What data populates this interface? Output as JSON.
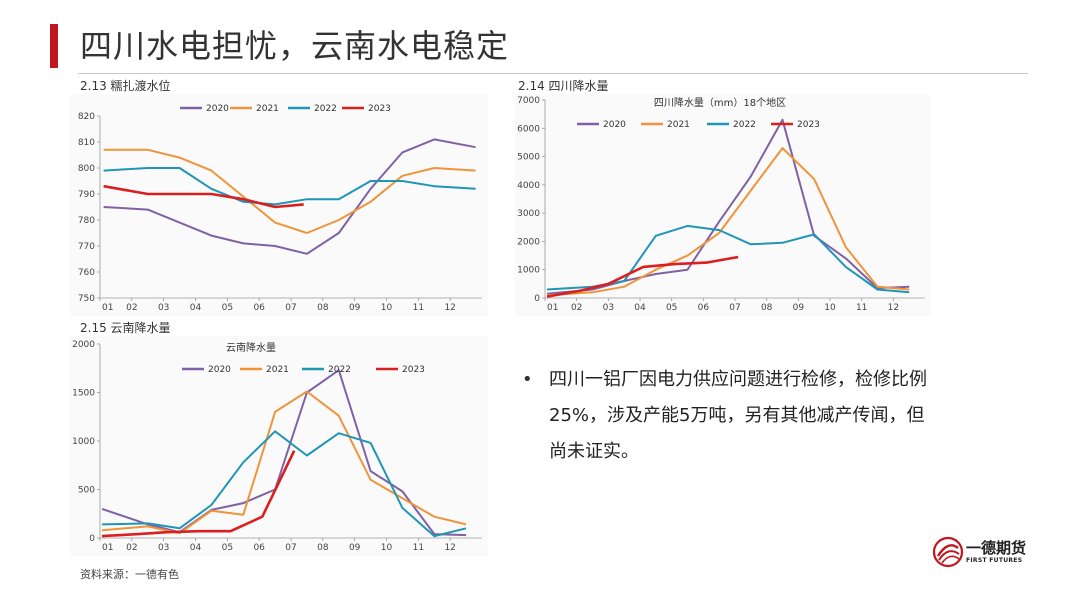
{
  "page": {
    "title": "四川水电担忧，云南水电稳定",
    "bullet": "四川一铝厂因电力供应问题进行检修，检修比例25%，涉及产能5万吨，另有其他减产传闻，但尚未证实。",
    "source": "资料来源：一德有色",
    "logo_cn": "一德期货",
    "logo_en": "FIRST FUTURES",
    "accent_color": "#c0161e"
  },
  "chart_data": [
    {
      "id": "c1",
      "label": "2.13 糯扎渡水位",
      "type": "line",
      "title": "",
      "categories": [
        "01",
        "02",
        "03",
        "04",
        "05",
        "06",
        "07",
        "08",
        "09",
        "10",
        "11",
        "12"
      ],
      "ylim": [
        750,
        820
      ],
      "yticks": [
        750,
        760,
        770,
        780,
        790,
        800,
        810,
        820
      ],
      "grid": false,
      "legend": "top",
      "series": [
        {
          "name": "2020",
          "color": "#7e62a5",
          "values": [
            785,
            784,
            779,
            774,
            771,
            770,
            767,
            775,
            792,
            806,
            811,
            808
          ],
          "x": [
            0.05,
            1,
            2,
            3,
            4,
            5,
            6,
            7,
            8,
            9,
            10,
            11.3
          ]
        },
        {
          "name": "2021",
          "color": "#f0943b",
          "values": [
            807,
            807,
            804,
            799,
            789,
            779,
            775,
            780,
            787,
            797,
            800,
            799
          ],
          "x": [
            0.05,
            1,
            2,
            3,
            4,
            5,
            6,
            7,
            8,
            9,
            10,
            11.3
          ]
        },
        {
          "name": "2022",
          "color": "#1f96b6",
          "values": [
            799,
            800,
            800,
            792,
            787,
            786,
            788,
            788,
            795,
            795,
            793,
            792
          ],
          "x": [
            0.05,
            1,
            2,
            3,
            4,
            5,
            6,
            7,
            8,
            9,
            10,
            11.3
          ]
        },
        {
          "name": "2023",
          "color": "#d91f1f",
          "values": [
            793,
            790,
            790,
            790,
            788,
            785,
            786
          ],
          "x": [
            0.05,
            1,
            2,
            3,
            4,
            5,
            5.9
          ]
        }
      ]
    },
    {
      "id": "c2",
      "label": "2.14 四川降水量",
      "type": "line",
      "title": "四川降水量（mm）18个地区",
      "categories": [
        "01",
        "02",
        "03",
        "04",
        "05",
        "06",
        "07",
        "08",
        "09",
        "10",
        "11",
        "12"
      ],
      "ylim": [
        0,
        7000
      ],
      "yticks": [
        0,
        1000,
        2000,
        3000,
        4000,
        5000,
        6000,
        7000
      ],
      "grid": false,
      "legend": "top",
      "series": [
        {
          "name": "2020",
          "color": "#7e62a5",
          "values": [
            150,
            300,
            600,
            850,
            1000,
            2700,
            4300,
            6300,
            2200,
            1400,
            350,
            400
          ],
          "x": [
            0,
            1,
            2,
            3,
            4,
            5,
            6,
            7,
            8,
            9,
            10,
            11
          ]
        },
        {
          "name": "2021",
          "color": "#f0943b",
          "values": [
            100,
            200,
            400,
            1000,
            1500,
            2300,
            3800,
            5300,
            4200,
            1800,
            400,
            300
          ],
          "x": [
            0,
            1,
            2,
            3,
            4,
            5,
            6,
            7,
            8,
            9,
            10,
            11
          ]
        },
        {
          "name": "2022",
          "color": "#1f96b6",
          "values": [
            300,
            400,
            600,
            2200,
            2550,
            2400,
            1900,
            1950,
            2250,
            1100,
            300,
            200
          ],
          "x": [
            0,
            1,
            2,
            3,
            4,
            5,
            6,
            7,
            8,
            9,
            10,
            11
          ]
        },
        {
          "name": "2023",
          "color": "#d91f1f",
          "values": [
            50,
            250,
            500,
            1100,
            1200,
            1250,
            1450
          ],
          "x": [
            0,
            0.6,
            1.5,
            2.6,
            3.6,
            4.6,
            5.6
          ]
        }
      ]
    },
    {
      "id": "c3",
      "label": "2.15 云南降水量",
      "type": "line",
      "title": "云南降水量",
      "categories": [
        "01",
        "02",
        "03",
        "04",
        "05",
        "06",
        "07",
        "08",
        "09",
        "10",
        "11",
        "12"
      ],
      "ylim": [
        0,
        2000
      ],
      "yticks": [
        0,
        500,
        1000,
        1500,
        2000
      ],
      "grid": false,
      "legend": "top",
      "series": [
        {
          "name": "2020",
          "color": "#7e62a5",
          "values": [
            300,
            140,
            60,
            290,
            360,
            500,
            1500,
            1730,
            690,
            480,
            40,
            30
          ],
          "x": [
            0,
            1,
            2,
            3,
            4,
            5,
            6,
            7,
            8,
            9,
            10,
            11
          ]
        },
        {
          "name": "2021",
          "color": "#f0943b",
          "values": [
            80,
            120,
            50,
            280,
            240,
            1300,
            1510,
            1260,
            600,
            410,
            220,
            140
          ],
          "x": [
            0,
            1,
            2,
            3,
            4,
            5,
            6,
            7,
            8,
            9,
            10,
            11
          ]
        },
        {
          "name": "2022",
          "color": "#1f96b6",
          "values": [
            140,
            150,
            100,
            340,
            780,
            1100,
            850,
            1080,
            980,
            310,
            20,
            100
          ],
          "x": [
            0,
            1,
            2,
            3,
            4,
            5,
            6,
            7,
            8,
            9,
            10,
            11
          ]
        },
        {
          "name": "2023",
          "color": "#d91f1f",
          "values": [
            20,
            40,
            60,
            70,
            70,
            220,
            900
          ],
          "x": [
            0,
            0.7,
            1.6,
            2.6,
            3.6,
            4.6,
            5.6
          ]
        }
      ]
    }
  ]
}
